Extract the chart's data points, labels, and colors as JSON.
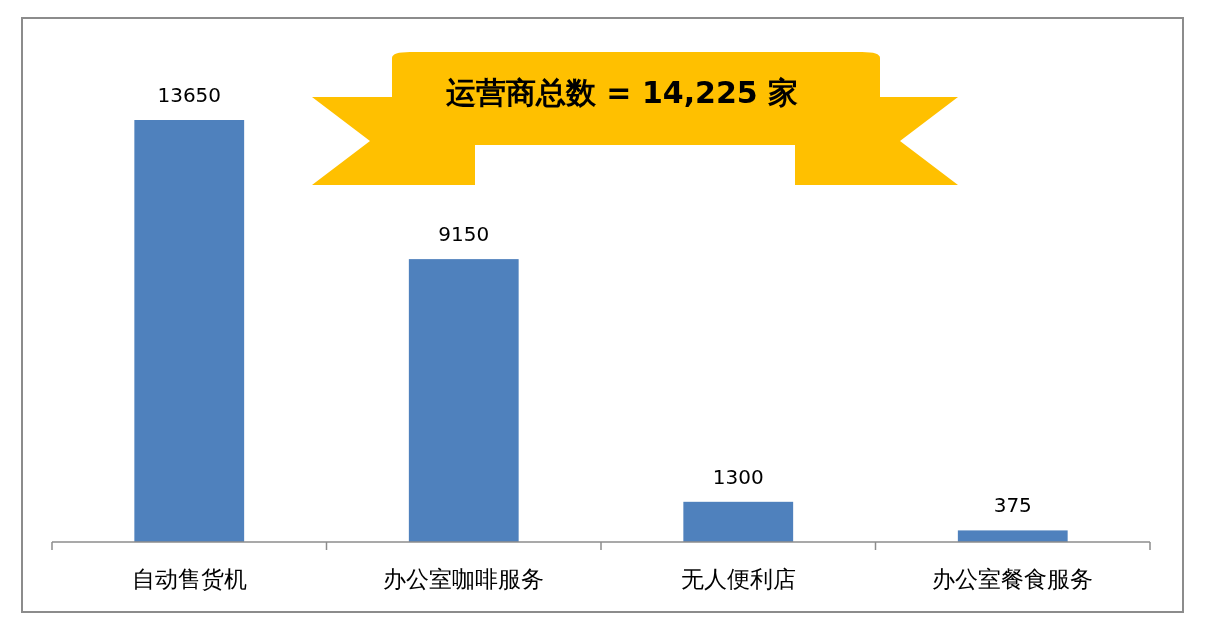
{
  "chart_data": {
    "type": "bar",
    "categories": [
      "自动售货机",
      "办公室咖啡服务",
      "无人便利店",
      "办公室餐食服务"
    ],
    "values": [
      13650,
      9150,
      1300,
      375
    ],
    "color": "#4f81bd",
    "data_labels": true,
    "annotations": [
      "运营商总数  = 14,225 家"
    ]
  }
}
